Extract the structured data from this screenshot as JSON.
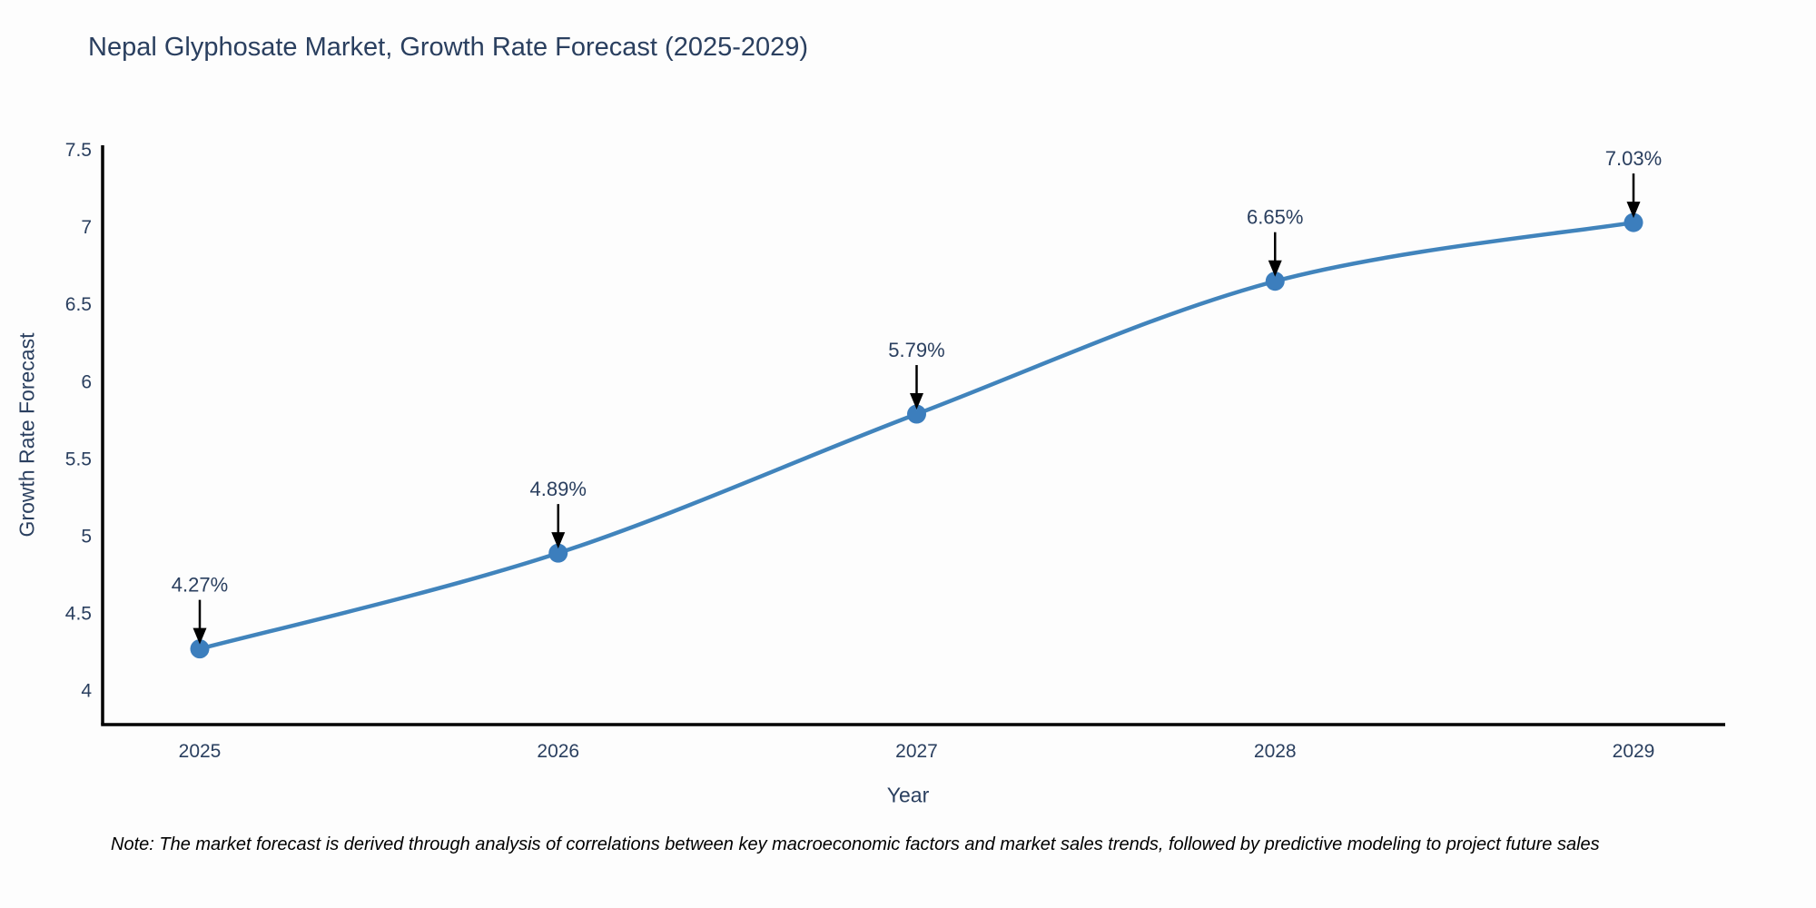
{
  "title": "Nepal Glyphosate Market, Growth Rate Forecast (2025-2029)",
  "note": "Note: The market forecast is derived through analysis of correlations between key macroeconomic factors and market sales trends, followed by predictive modeling to project future sales",
  "chart_data": {
    "type": "line",
    "x": [
      2025,
      2026,
      2027,
      2028,
      2029
    ],
    "series": [
      {
        "name": "Growth Rate Forecast",
        "values": [
          4.27,
          4.89,
          5.79,
          6.65,
          7.03
        ]
      }
    ],
    "point_labels": [
      "4.27%",
      "4.89%",
      "5.79%",
      "6.65%",
      "7.03%"
    ],
    "title": "Nepal Glyphosate Market, Growth Rate Forecast (2025-2029)",
    "xlabel": "Year",
    "ylabel": "Growth Rate Forecast",
    "yticks": [
      4,
      4.5,
      5,
      5.5,
      6,
      6.5,
      7,
      7.5
    ],
    "ylim": [
      3.78,
      7.53
    ],
    "grid": false,
    "legend": "none",
    "line_shape": "spline",
    "annotation_style": "black-down-arrow",
    "colors": {
      "line": "#4184bc",
      "marker": "#3c7ebd",
      "axis": "#000000",
      "text": "#2a3f5f",
      "arrow": "#000000",
      "note_text": "#000000"
    }
  }
}
